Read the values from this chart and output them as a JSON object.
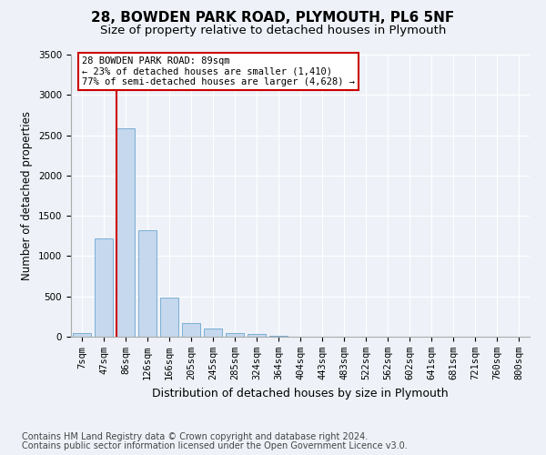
{
  "title": "28, BOWDEN PARK ROAD, PLYMOUTH, PL6 5NF",
  "subtitle": "Size of property relative to detached houses in Plymouth",
  "xlabel": "Distribution of detached houses by size in Plymouth",
  "ylabel": "Number of detached properties",
  "categories": [
    "7sqm",
    "47sqm",
    "86sqm",
    "126sqm",
    "166sqm",
    "205sqm",
    "245sqm",
    "285sqm",
    "324sqm",
    "364sqm",
    "404sqm",
    "443sqm",
    "483sqm",
    "522sqm",
    "562sqm",
    "602sqm",
    "641sqm",
    "681sqm",
    "721sqm",
    "760sqm",
    "800sqm"
  ],
  "values": [
    50,
    1220,
    2580,
    1320,
    490,
    175,
    100,
    50,
    30,
    10,
    5,
    2,
    0,
    0,
    0,
    0,
    0,
    0,
    0,
    0,
    0
  ],
  "bar_color": "#c5d8ed",
  "bar_edge_color": "#7baed4",
  "vline_color": "#cc0000",
  "annotation_text": "28 BOWDEN PARK ROAD: 89sqm\n← 23% of detached houses are smaller (1,410)\n77% of semi-detached houses are larger (4,628) →",
  "annotation_box_color": "#ffffff",
  "annotation_box_edge_color": "#cc0000",
  "ylim": [
    0,
    3500
  ],
  "yticks": [
    0,
    500,
    1000,
    1500,
    2000,
    2500,
    3000,
    3500
  ],
  "bg_color": "#eef2f8",
  "plot_bg_color": "#eef2f8",
  "footer_line1": "Contains HM Land Registry data © Crown copyright and database right 2024.",
  "footer_line2": "Contains public sector information licensed under the Open Government Licence v3.0.",
  "title_fontsize": 11,
  "subtitle_fontsize": 9.5,
  "xlabel_fontsize": 9,
  "ylabel_fontsize": 8.5,
  "tick_fontsize": 7.5,
  "footer_fontsize": 7
}
